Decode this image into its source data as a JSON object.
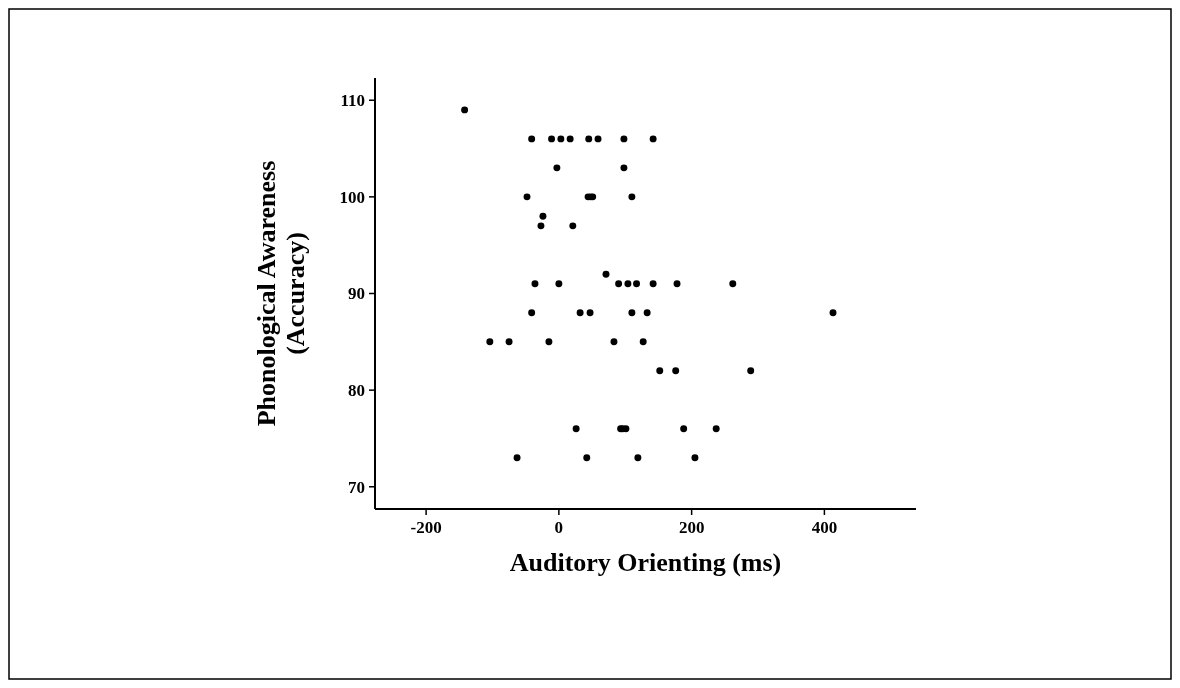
{
  "chart_data": {
    "type": "scatter",
    "xlabel": "Auditory Orienting (ms)",
    "ylabel": "Phonological Awareness\n(Accuracy)",
    "marker": "circle",
    "grid": false,
    "xlim": [
      -277,
      538
    ],
    "ylim": [
      67.7,
      112.3
    ],
    "xticks": [
      -200,
      0,
      200,
      400
    ],
    "yticks": [
      70,
      80,
      90,
      100,
      110
    ],
    "series": [
      {
        "color": "#000000",
        "x": [
          -142,
          -41,
          -11,
          3,
          17,
          45,
          59,
          98,
          142,
          -3,
          98,
          -48,
          44,
          48,
          51,
          110,
          -24,
          -27,
          21,
          71,
          -36,
          0,
          90,
          104,
          117,
          142,
          178,
          262,
          -41,
          32,
          47,
          110,
          133,
          413,
          -104,
          -75,
          -15,
          83,
          127,
          152,
          176,
          289,
          26,
          93,
          96,
          101,
          188,
          237,
          -63,
          42,
          119,
          205
        ],
        "values": [
          109,
          106,
          106,
          106,
          106,
          106,
          106,
          106,
          106,
          103,
          103,
          100,
          100,
          100,
          100,
          100,
          98,
          97,
          97,
          92,
          91,
          91,
          91,
          91,
          91,
          91,
          91,
          91,
          88,
          88,
          88,
          88,
          88,
          88,
          85,
          85,
          85,
          85,
          85,
          82,
          82,
          82,
          76,
          76,
          76,
          76,
          76,
          76,
          73,
          73,
          73,
          73
        ]
      }
    ]
  }
}
